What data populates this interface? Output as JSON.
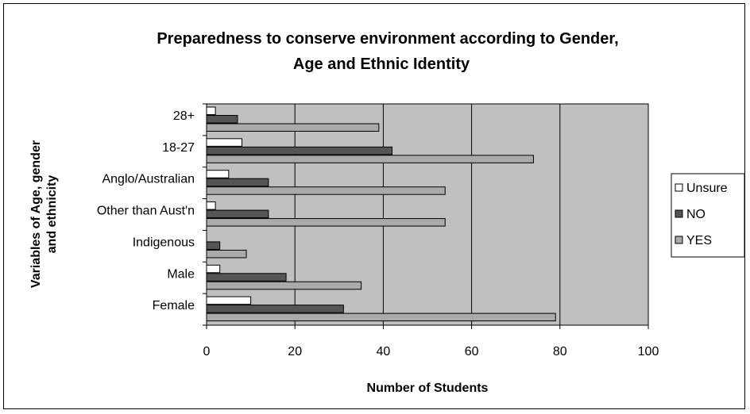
{
  "chart_data": {
    "type": "bar",
    "orientation": "horizontal",
    "title_lines": [
      "Preparedness to conserve environment according to Gender,",
      "Age and Ethnic Identity"
    ],
    "xlabel": "Number of Students",
    "ylabel_lines": [
      "Variables of Age, gender",
      "and ethnicity"
    ],
    "xlim": [
      0,
      100
    ],
    "x_ticks": [
      "0",
      "20",
      "40",
      "60",
      "80",
      "100"
    ],
    "categories": [
      "28+",
      "18-27",
      "Anglo/Australian",
      "Other than Aust'n",
      "Indigenous",
      "Male",
      "Female"
    ],
    "series": [
      {
        "name": "Unsure",
        "color": "#ffffff",
        "values": [
          2,
          8,
          5,
          2,
          0,
          3,
          10
        ]
      },
      {
        "name": "NO",
        "color": "#555555",
        "values": [
          7,
          42,
          14,
          14,
          3,
          18,
          31
        ]
      },
      {
        "name": "YES",
        "color": "#aaaaaa",
        "values": [
          39,
          74,
          54,
          54,
          9,
          35,
          79
        ]
      }
    ],
    "plot_background": "#c0c0c0",
    "grid": "vertical",
    "legend_position": "right"
  }
}
